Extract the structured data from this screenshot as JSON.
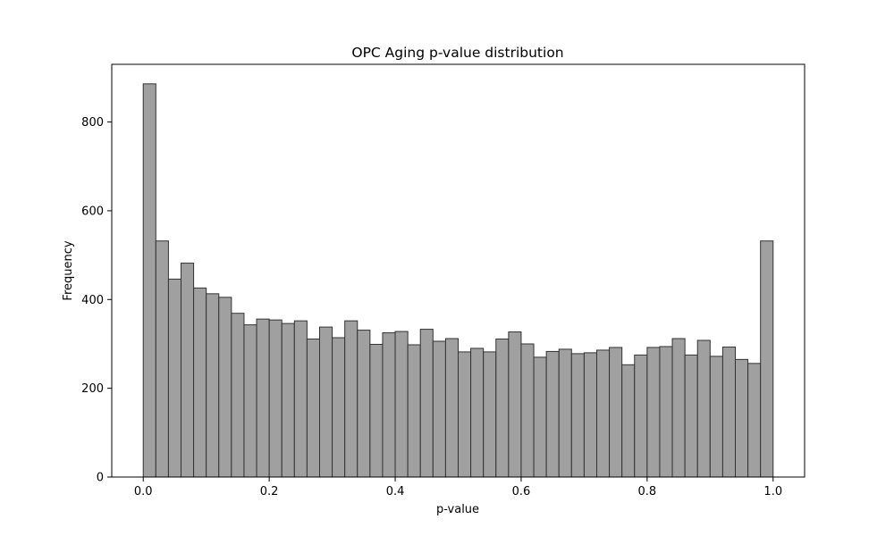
{
  "chart_data": {
    "type": "bar",
    "title": "OPC Aging p-value distribution",
    "xlabel": "p-value",
    "ylabel": "Frequency",
    "xlim": [
      -0.05,
      1.05
    ],
    "ylim": [
      0,
      930
    ],
    "bin_width": 0.02,
    "bin_starts": [
      0.0,
      0.02,
      0.04,
      0.06,
      0.08,
      0.1,
      0.12,
      0.14,
      0.16,
      0.18,
      0.2,
      0.22,
      0.24,
      0.26,
      0.28,
      0.3,
      0.32,
      0.34,
      0.36,
      0.38,
      0.4,
      0.42,
      0.44,
      0.46,
      0.48,
      0.5,
      0.52,
      0.54,
      0.56,
      0.58,
      0.6,
      0.62,
      0.64,
      0.66,
      0.68,
      0.7,
      0.72,
      0.74,
      0.76,
      0.78,
      0.8,
      0.82,
      0.84,
      0.86,
      0.88,
      0.9,
      0.92,
      0.94,
      0.96,
      0.98
    ],
    "values": [
      886,
      532,
      446,
      482,
      426,
      413,
      405,
      369,
      343,
      356,
      354,
      346,
      352,
      311,
      338,
      314,
      352,
      331,
      299,
      325,
      328,
      298,
      333,
      306,
      312,
      282,
      290,
      282,
      311,
      327,
      300,
      270,
      283,
      288,
      278,
      280,
      286,
      292,
      253,
      275,
      292,
      294,
      312,
      275,
      308,
      272,
      293,
      265,
      256,
      532
    ],
    "xticks": [
      0.0,
      0.2,
      0.4,
      0.6,
      0.8,
      1.0
    ],
    "xtick_labels": [
      "0.0",
      "0.2",
      "0.4",
      "0.6",
      "0.8",
      "1.0"
    ],
    "yticks": [
      0,
      200,
      400,
      600,
      800
    ],
    "ytick_labels": [
      "0",
      "200",
      "400",
      "600",
      "800"
    ],
    "bar_color": "#a0a0a0",
    "edge_color": "#333333",
    "grid": false
  }
}
